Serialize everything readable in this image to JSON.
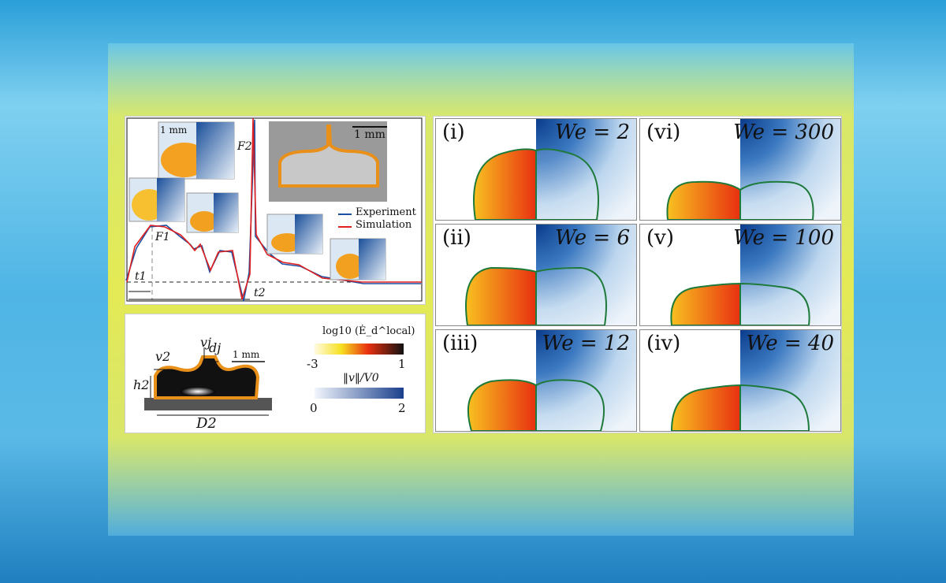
{
  "plot": {
    "legend": {
      "experiment": "Experiment",
      "simulation": "Simulation"
    },
    "legend_placement": "right",
    "series_colors": {
      "experiment": "#1f4fa0",
      "simulation": "#e02020"
    },
    "annotations": {
      "f1": "F1",
      "f2": "F2",
      "t1": "t1",
      "t2": "t2",
      "scale": "1 mm",
      "scale_photo": "1 mm"
    }
  },
  "bottom_panel": {
    "labels": {
      "vj": "vj",
      "dj": "dj",
      "v2": "v2",
      "h2": "h2",
      "D2": "D2",
      "scale": "1 mm"
    },
    "colorbar_energy": {
      "title": "log10 (Ė_d^local)",
      "min": "-3",
      "max": "1"
    },
    "colorbar_velocity": {
      "title": "‖v‖/V0",
      "min": "0",
      "max": "2"
    }
  },
  "cells": [
    {
      "label": "(i)",
      "we": "We = 2"
    },
    {
      "label": "(vi)",
      "we": "We = 300"
    },
    {
      "label": "(ii)",
      "we": "We = 6"
    },
    {
      "label": "(v)",
      "we": "We = 100"
    },
    {
      "label": "(iii)",
      "we": "We = 12"
    },
    {
      "label": "(iv)",
      "we": "We = 40"
    }
  ]
}
